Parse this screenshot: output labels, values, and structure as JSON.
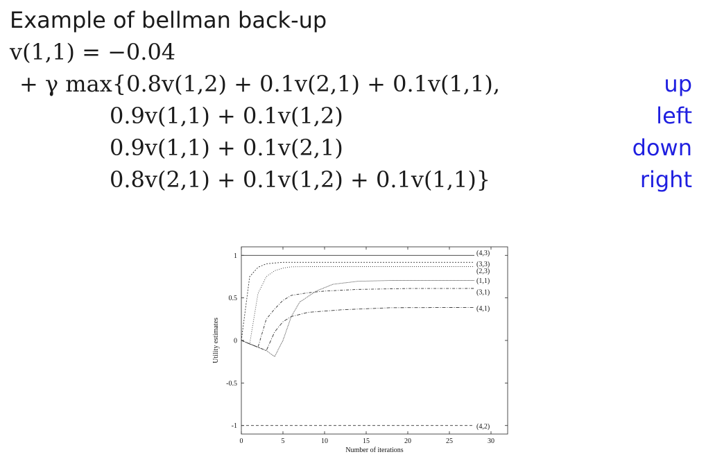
{
  "slide": {
    "title": "Example of bellman back-up",
    "eq_first": "v(1,1) = −0.04",
    "rows": [
      {
        "prefix": "+ γ max{",
        "expr": "0.8v(1,2) + 0.1v(2,1) + 0.1v(1,1),",
        "action": "up"
      },
      {
        "prefix": "",
        "expr": "0.9v(1,1) + 0.1v(1,2)",
        "action": "left"
      },
      {
        "prefix": "",
        "expr": "0.9v(1,1) + 0.1v(2,1)",
        "action": "down"
      },
      {
        "prefix": "",
        "expr": "0.8v(2,1) + 0.1v(1,2) + 0.1v(1,1)}",
        "action": "right"
      }
    ]
  },
  "chart_data": {
    "type": "line",
    "xlabel": "Number of iterations",
    "ylabel": "Utility estimates",
    "xlim": [
      0,
      32
    ],
    "ylim": [
      -1.1,
      1.1
    ],
    "xticks": [
      0,
      5,
      10,
      15,
      20,
      25,
      30
    ],
    "yticks": [
      -1,
      -0.5,
      0,
      0.5,
      1
    ],
    "xtick_labels": [
      "0",
      "5",
      "10",
      "15",
      "20",
      "25",
      "30"
    ],
    "ytick_labels": [
      "-1",
      "-0.5",
      "0",
      "0.5",
      "1"
    ],
    "series": [
      {
        "name": "(4,3)",
        "dash": "",
        "x": [
          0,
          28
        ],
        "y": [
          1.0,
          1.0
        ]
      },
      {
        "name": "(3,3)",
        "dash": "2,2",
        "x": [
          0,
          1,
          2,
          3,
          4,
          5,
          7,
          10,
          28
        ],
        "y": [
          0,
          0.75,
          0.86,
          0.9,
          0.91,
          0.918,
          0.918,
          0.918,
          0.918
        ]
      },
      {
        "name": "(2,3)",
        "dash": "1,2",
        "x": [
          0,
          1,
          2,
          3,
          4,
          5,
          6,
          8,
          12,
          28
        ],
        "y": [
          0,
          -0.04,
          0.55,
          0.75,
          0.82,
          0.85,
          0.865,
          0.868,
          0.868,
          0.868
        ]
      },
      {
        "name": "(1,1)",
        "dash": "1,1",
        "x": [
          0,
          1,
          2,
          3,
          4,
          5,
          6,
          7,
          9,
          11,
          14,
          18,
          28
        ],
        "y": [
          0,
          -0.04,
          -0.08,
          -0.12,
          -0.19,
          0.0,
          0.28,
          0.45,
          0.58,
          0.66,
          0.695,
          0.705,
          0.705
        ]
      },
      {
        "name": "(3,1)",
        "dash": "4,2,1,2",
        "x": [
          0,
          1,
          2,
          3,
          4,
          5,
          6,
          8,
          10,
          14,
          20,
          28
        ],
        "y": [
          0,
          -0.04,
          -0.08,
          0.25,
          0.37,
          0.47,
          0.53,
          0.56,
          0.58,
          0.6,
          0.61,
          0.611
        ]
      },
      {
        "name": "(4,1)",
        "dash": "5,2,1,2",
        "x": [
          0,
          1,
          2,
          3,
          4,
          5,
          6,
          8,
          12,
          18,
          28
        ],
        "y": [
          0,
          -0.04,
          -0.08,
          -0.12,
          0.1,
          0.22,
          0.28,
          0.33,
          0.36,
          0.385,
          0.388
        ]
      },
      {
        "name": "(4,2)",
        "dash": "4,3",
        "x": [
          0,
          28
        ],
        "y": [
          -1.0,
          -1.0
        ]
      }
    ]
  }
}
